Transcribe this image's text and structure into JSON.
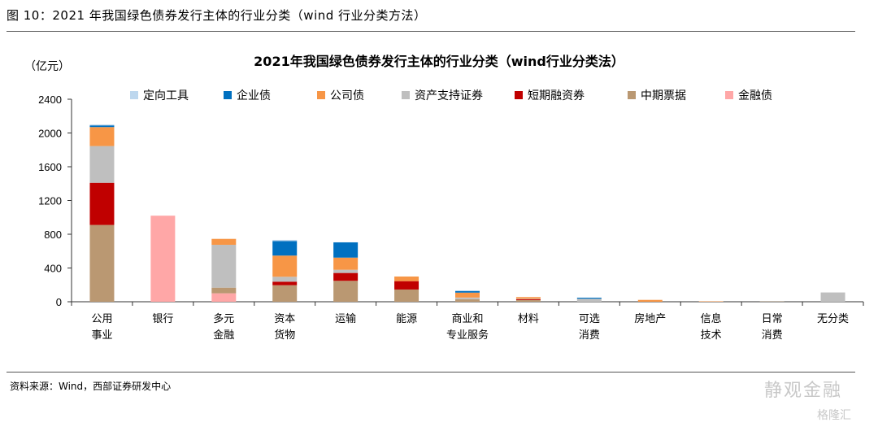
{
  "figure_title": "图 10：2021 年我国绿色债券发行主体的行业分类（wind 行业分类方法）",
  "source": "资料来源：Wind，西部证券研发中心",
  "watermark": "静观金融",
  "watermark2": "格隆汇",
  "chart_data": {
    "type": "bar",
    "stacked": true,
    "title": "2021年我国绿色债券发行主体的行业分类（wind行业分类法）",
    "ylabel": "（亿元）",
    "ylim": [
      0,
      2400
    ],
    "yticks": [
      0,
      400,
      800,
      1200,
      1600,
      2000,
      2400
    ],
    "grid": false,
    "legend_position": "top",
    "categories": [
      [
        "公用",
        "事业"
      ],
      [
        "银行"
      ],
      [
        "多元",
        "金融"
      ],
      [
        "资本",
        "货物"
      ],
      [
        "运输"
      ],
      [
        "能源"
      ],
      [
        "商业和",
        "专业服务"
      ],
      [
        "材料"
      ],
      [
        "可选",
        "消费"
      ],
      [
        "房地产"
      ],
      [
        "信息",
        "技术"
      ],
      [
        "日常",
        "消费"
      ],
      [
        "无分类"
      ]
    ],
    "series": [
      {
        "name": "金融债",
        "color": "#FFA7A7",
        "values": [
          0,
          1020,
          100,
          0,
          0,
          0,
          0,
          0,
          0,
          0,
          0,
          0,
          0
        ]
      },
      {
        "name": "中期票据",
        "color": "#BA9872",
        "values": [
          910,
          0,
          67,
          196,
          248,
          145,
          30,
          20,
          0,
          0,
          0,
          3,
          0
        ]
      },
      {
        "name": "短期融资券",
        "color": "#C00000",
        "values": [
          500,
          0,
          0,
          42,
          93,
          99,
          0,
          10,
          0,
          0,
          0,
          0,
          0
        ]
      },
      {
        "name": "资产支持证券",
        "color": "#BFBFBF",
        "values": [
          435,
          0,
          508,
          58,
          38,
          0,
          20,
          5,
          36,
          0,
          0,
          0,
          110
        ]
      },
      {
        "name": "公司债",
        "color": "#F79646",
        "values": [
          225,
          0,
          70,
          251,
          144,
          55,
          58,
          20,
          0,
          22,
          5,
          0,
          0
        ]
      },
      {
        "name": "企业债",
        "color": "#0070C0",
        "values": [
          20,
          0,
          0,
          173,
          181,
          0,
          20,
          0,
          12,
          0,
          0,
          0,
          0
        ]
      },
      {
        "name": "定向工具",
        "color": "#BDD7EE",
        "values": [
          10,
          0,
          0,
          13,
          0,
          0,
          0,
          0,
          0,
          0,
          0,
          0,
          0
        ]
      }
    ],
    "legend_order": [
      "定向工具",
      "企业债",
      "公司债",
      "资产支持证券",
      "短期融资券",
      "中期票据",
      "金融债"
    ]
  }
}
